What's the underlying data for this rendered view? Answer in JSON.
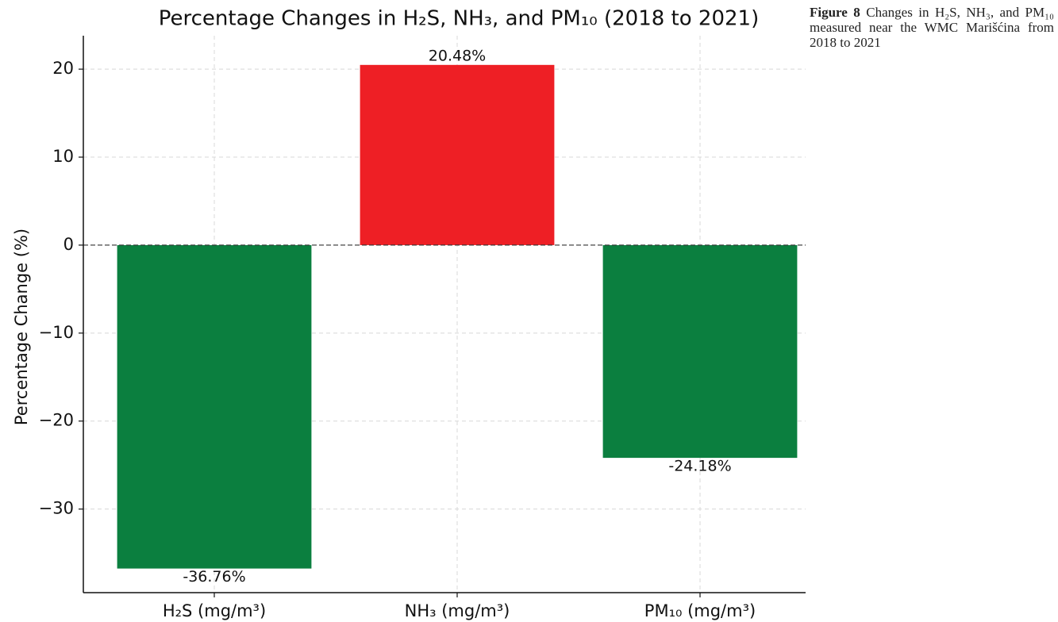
{
  "chart_data": {
    "type": "bar",
    "title": "Percentage Changes in H₂S, NH₃, and PM₁₀ (2018 to 2021)",
    "ylabel": "Percentage Change (%)",
    "categories": [
      "H₂S (mg/m³)",
      "NH₃ (mg/m³)",
      "PM₁₀ (mg/m³)"
    ],
    "values": [
      -36.76,
      20.48,
      -24.18
    ],
    "value_labels": [
      "-36.76%",
      "20.48%",
      "-24.18%"
    ],
    "colors": [
      "#0b7f3f",
      "#ee1f25",
      "#0b7f3f"
    ],
    "ylim": [
      -39.5,
      23.8
    ],
    "yticks": [
      {
        "value": -30,
        "label": "−30"
      },
      {
        "value": -20,
        "label": "−20"
      },
      {
        "value": -10,
        "label": "−10"
      },
      0,
      10,
      20
    ],
    "grid": true
  },
  "caption": {
    "label": "Figure 8",
    "text": "Changes in H₂S, NH₃, and PM₁₀ measured near the WMC Marišćina from 2018 to 2021"
  }
}
